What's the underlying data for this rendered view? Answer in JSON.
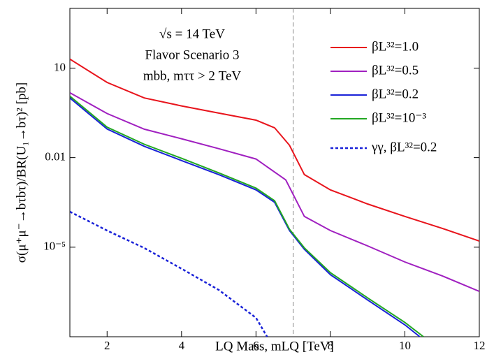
{
  "chart_data": {
    "type": "line",
    "ylog": true,
    "xlabel": "LQ Mass, mLQ [TeV]",
    "ylabel": "σ(μ⁺μ⁻→bτbτ)/BR(U₁→bτ)² [pb]",
    "annotations": [
      "√s = 14 TeV",
      "Flavor Scenario 3",
      "mbb, mττ > 2 TeV"
    ],
    "vline": 7,
    "xlim": [
      1,
      12
    ],
    "xticks": [
      2,
      4,
      6,
      8,
      10,
      12
    ],
    "ylim": [
      1e-08,
      1000
    ],
    "yticks": [
      {
        "value": 1e-05,
        "label": "10⁻⁵"
      },
      0.01,
      10
    ],
    "legend": "upper right",
    "series": [
      {
        "name": "βL³²=1.0",
        "color": "#e8141c",
        "dash": false,
        "x": [
          1,
          2,
          3,
          4,
          5,
          6,
          6.5,
          6.9,
          7.3,
          8,
          9,
          10,
          11,
          12
        ],
        "values": [
          20,
          3.3,
          1.0,
          0.54,
          0.31,
          0.18,
          0.1,
          0.026,
          0.0027,
          0.00083,
          0.00028,
          0.000107,
          4.3e-05,
          1.6e-05
        ]
      },
      {
        "name": "βL³²=0.5",
        "color": "#a020c0",
        "dash": false,
        "x": [
          1,
          2,
          3,
          4,
          5,
          6,
          6.8,
          7.3,
          8,
          9,
          10,
          11,
          12
        ],
        "values": [
          1.5,
          0.3,
          0.09,
          0.043,
          0.02,
          0.009,
          0.0018,
          0.000107,
          3.6e-05,
          1.1e-05,
          3.2e-06,
          1.1e-06,
          3.3e-07
        ]
      },
      {
        "name": "βL³²=0.2",
        "color": "#1a22d8",
        "dash": false,
        "x": [
          1,
          2,
          3,
          4,
          5,
          6,
          6.5,
          6.9,
          7.3,
          8,
          9,
          10,
          10.4
        ],
        "values": [
          1.0,
          0.091,
          0.024,
          0.008,
          0.0027,
          0.00083,
          0.00032,
          3.6e-05,
          8.5e-06,
          1.2e-06,
          1.7e-07,
          2.5e-08,
          1e-08
        ]
      },
      {
        "name": "βL³²=10⁻³",
        "color": "#22a822",
        "dash": false,
        "x": [
          1,
          2,
          3,
          4,
          5,
          6,
          6.5,
          6.9,
          7.3,
          8,
          9,
          10,
          10.5
        ],
        "values": [
          1.15,
          0.105,
          0.028,
          0.0095,
          0.0031,
          0.00095,
          0.00036,
          4e-05,
          9.5e-06,
          1.4e-06,
          2e-07,
          3e-08,
          1e-08
        ]
      },
      {
        "name": "γγ, βL³²=0.2",
        "color": "#1a22d8",
        "dash": true,
        "x": [
          1,
          2,
          3,
          4,
          5,
          6,
          6.3
        ],
        "values": [
          0.000155,
          3.6e-05,
          9.4e-06,
          1.9e-06,
          3.7e-07,
          4.3e-08,
          1e-08
        ]
      }
    ]
  }
}
